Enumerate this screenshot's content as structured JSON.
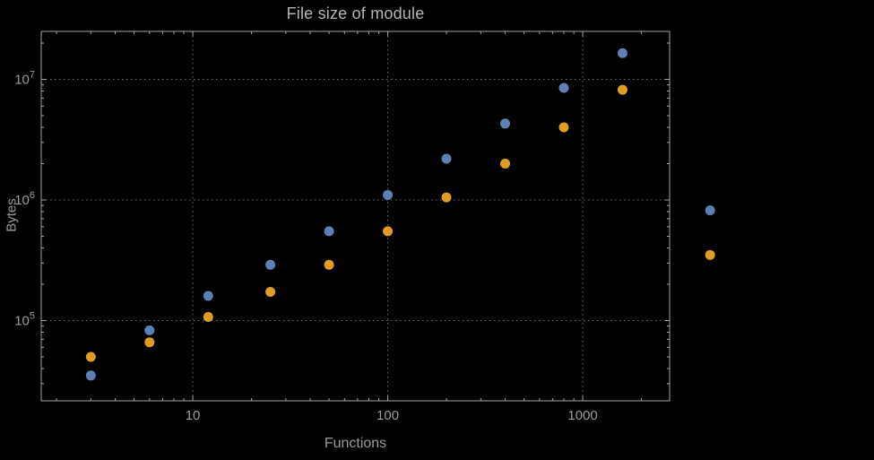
{
  "window": {
    "background": "#000000"
  },
  "chart_data": {
    "type": "scatter",
    "title": "File size of module",
    "xlabel": "Functions",
    "ylabel": "Bytes",
    "x_scale": "log",
    "y_scale": "log",
    "xlim": [
      1.67,
      2790
    ],
    "ylim": [
      21600,
      25000000
    ],
    "x_ticks": [
      10,
      100,
      1000
    ],
    "x_tick_labels": [
      "10",
      "100",
      "1000"
    ],
    "y_ticks": [
      100000,
      1000000,
      10000000
    ],
    "y_tick_labels": [
      "10^5",
      "10^6",
      "10^7"
    ],
    "grid": "dotted lines at decade ticks, both axes",
    "legend": "none",
    "point_radius_px": 5.5,
    "series": [
      {
        "name": "blue-series",
        "color": "#5e81b5",
        "points": [
          [
            3,
            35000
          ],
          [
            6,
            83000
          ],
          [
            12,
            160000
          ],
          [
            25,
            290000
          ],
          [
            50,
            550000
          ],
          [
            100,
            1100000
          ],
          [
            200,
            2200000
          ],
          [
            400,
            4300000
          ],
          [
            800,
            8500000
          ],
          [
            1600,
            16500000
          ],
          [
            4500,
            820000
          ]
        ]
      },
      {
        "name": "orange-series",
        "color": "#e19c24",
        "points": [
          [
            3,
            50000
          ],
          [
            6,
            66000
          ],
          [
            12,
            107000
          ],
          [
            25,
            173000
          ],
          [
            50,
            290000
          ],
          [
            100,
            550000
          ],
          [
            200,
            1050000
          ],
          [
            400,
            2000000
          ],
          [
            800,
            4000000
          ],
          [
            1600,
            8200000
          ],
          [
            4500,
            350000
          ]
        ]
      }
    ],
    "colors": {
      "frame": "#a5a5a5",
      "grid": "#6b6b6b",
      "tick_text": "#9c9c9c",
      "title_text": "#b5b5b5",
      "axis_label_text": "#9c9c9c"
    }
  }
}
